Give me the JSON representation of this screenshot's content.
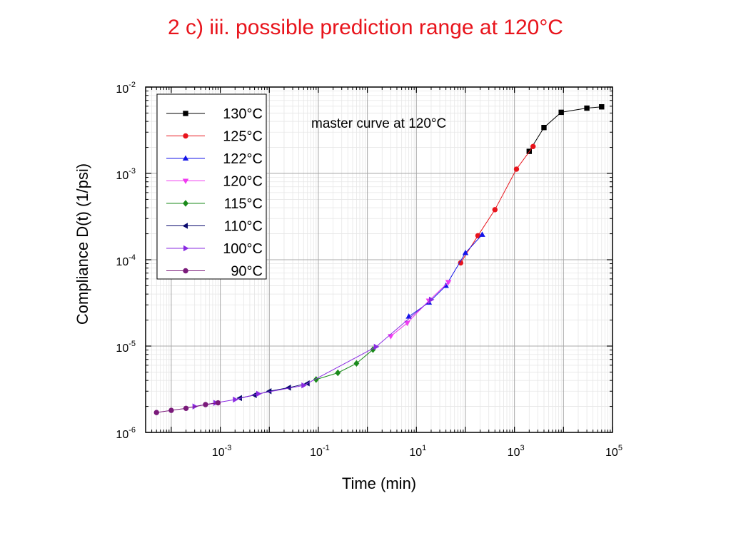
{
  "slide": {
    "title": "2 c) iii. possible prediction range at 120°C"
  },
  "chart_data": {
    "type": "scatter",
    "title": "",
    "annotation": "master curve at 120°C",
    "xlabel": "Time (min)",
    "ylabel": "Compliance D(t) (1/psi)",
    "xscale": "log",
    "yscale": "log",
    "xlim": [
      3e-05,
      100000
    ],
    "ylim": [
      1e-06,
      0.01
    ],
    "x_ticks": [
      {
        "value": 0.001,
        "base": "10",
        "exp": "-3"
      },
      {
        "value": 0.1,
        "base": "10",
        "exp": "-1"
      },
      {
        "value": 10,
        "base": "10",
        "exp": "1"
      },
      {
        "value": 1000,
        "base": "10",
        "exp": "3"
      },
      {
        "value": 100000,
        "base": "10",
        "exp": "5"
      }
    ],
    "y_ticks": [
      {
        "value": 1e-06,
        "base": "10",
        "exp": "-6"
      },
      {
        "value": 1e-05,
        "base": "10",
        "exp": "-5"
      },
      {
        "value": 0.0001,
        "base": "10",
        "exp": "-4"
      },
      {
        "value": 0.001,
        "base": "10",
        "exp": "-3"
      },
      {
        "value": 0.01,
        "base": "10",
        "exp": "-2"
      }
    ],
    "grid": true,
    "legend_position": "top-left",
    "series": [
      {
        "name": "130°C",
        "color": "#000000",
        "marker": "square",
        "x": [
          2000,
          4000,
          9000,
          30000,
          60000
        ],
        "y": [
          0.0018,
          0.0034,
          0.0051,
          0.0057,
          0.0059
        ]
      },
      {
        "name": "125°C",
        "color": "#e8141c",
        "marker": "circle",
        "x": [
          80,
          180,
          400,
          1100,
          2400
        ],
        "y": [
          9.2e-05,
          0.00019,
          0.00038,
          0.00112,
          0.00205
        ]
      },
      {
        "name": "122°C",
        "color": "#1414e8",
        "marker": "triangle-up",
        "x": [
          7,
          18,
          40,
          100,
          220
        ],
        "y": [
          2.2e-05,
          3.2e-05,
          5e-05,
          0.00012,
          0.000195
        ]
      },
      {
        "name": "120°C",
        "color": "#f03cf0",
        "marker": "triangle-down",
        "x": [
          3,
          6.5,
          18,
          45
        ],
        "y": [
          1.3e-05,
          1.85e-05,
          3.35e-05,
          5.5e-05
        ]
      },
      {
        "name": "115°C",
        "color": "#1a8a1a",
        "marker": "diamond",
        "x": [
          0.09,
          0.25,
          0.6,
          1.3
        ],
        "y": [
          4.1e-06,
          4.9e-06,
          6.3e-06,
          9.1e-06
        ]
      },
      {
        "name": "110°C",
        "color": "#0a0a6e",
        "marker": "triangle-left",
        "x": [
          0.0025,
          0.005,
          0.01,
          0.025,
          0.06
        ],
        "y": [
          2.5e-06,
          2.7e-06,
          3e-06,
          3.3e-06,
          3.7e-06
        ]
      },
      {
        "name": "100°C",
        "color": "#8a2be2",
        "marker": "triangle-right",
        "x": [
          0.0003,
          0.0008,
          0.002,
          0.006,
          0.05,
          1.5,
          20
        ],
        "y": [
          2e-06,
          2.2e-06,
          2.4e-06,
          2.8e-06,
          3.5e-06,
          9.8e-06,
          3.45e-05
        ]
      },
      {
        "name": "90°C",
        "color": "#7a1a7a",
        "marker": "circle",
        "x": [
          5e-05,
          0.0001,
          0.0002,
          0.0005,
          0.0009
        ],
        "y": [
          1.7e-06,
          1.8e-06,
          1.9e-06,
          2.1e-06,
          2.2e-06
        ]
      }
    ]
  }
}
